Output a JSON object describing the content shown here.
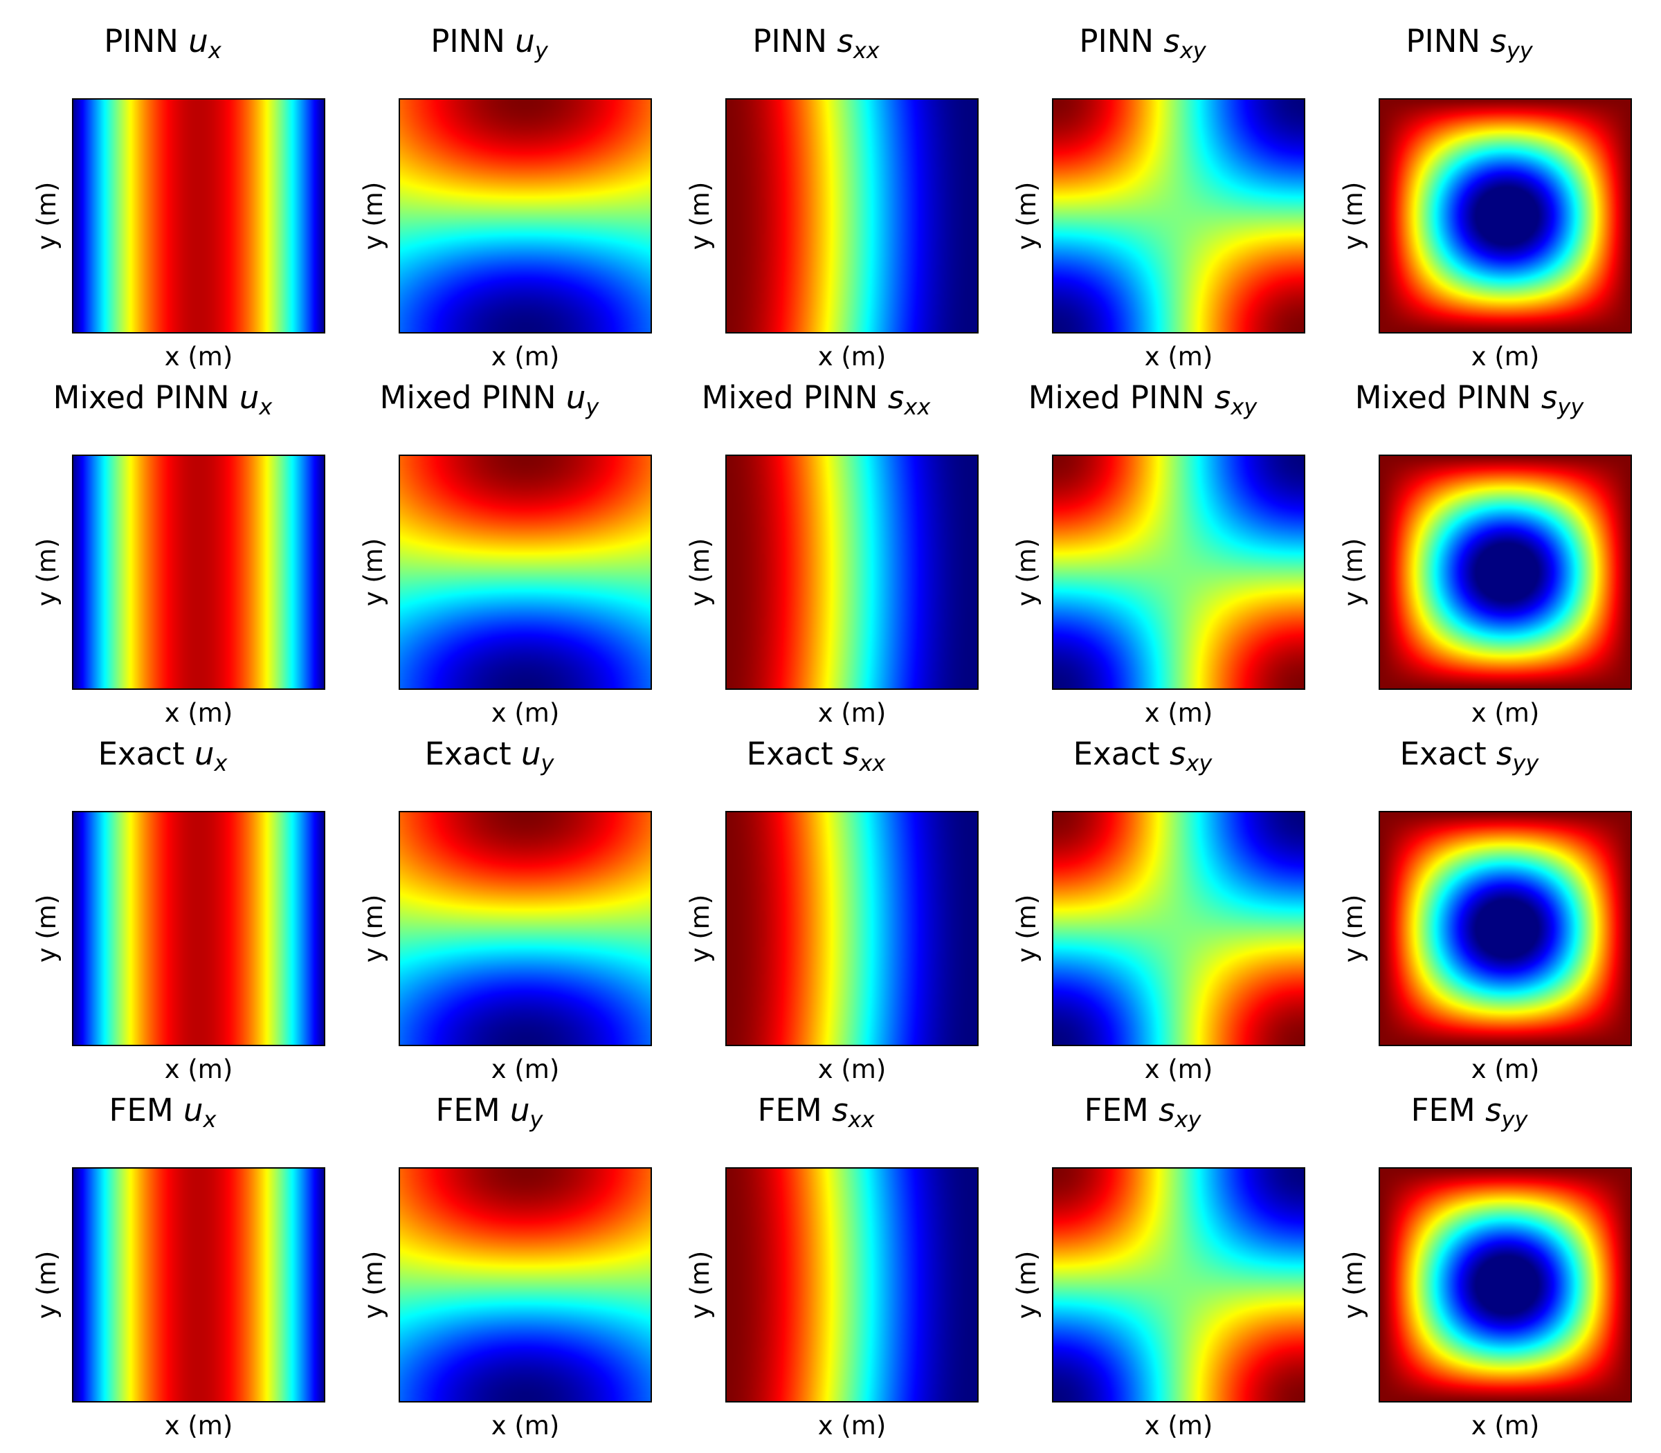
{
  "chart_data": {
    "type": "heatmap",
    "colormap": "jet",
    "grid": false,
    "layout": {
      "rows": 4,
      "cols": 5
    },
    "row_methods": [
      "PINN",
      "Mixed PINN",
      "Exact",
      "FEM"
    ],
    "fields": [
      {
        "key": "ux",
        "base": "u",
        "sub": "x"
      },
      {
        "key": "uy",
        "base": "u",
        "sub": "y"
      },
      {
        "key": "sxx",
        "base": "s",
        "sub": "xx"
      },
      {
        "key": "sxy",
        "base": "s",
        "sub": "xy"
      },
      {
        "key": "syy",
        "base": "s",
        "sub": "yy"
      }
    ],
    "xlabel": "x (m)",
    "ylabel": "y (m)",
    "panels": [
      {
        "title": "PINN",
        "field": "ux",
        "xlabel": "x (m)",
        "ylabel": "y (m)"
      },
      {
        "title": "PINN",
        "field": "uy",
        "xlabel": "x (m)",
        "ylabel": "y (m)"
      },
      {
        "title": "PINN",
        "field": "sxx",
        "xlabel": "x (m)",
        "ylabel": "y (m)"
      },
      {
        "title": "PINN",
        "field": "sxy",
        "xlabel": "x (m)",
        "ylabel": "y (m)"
      },
      {
        "title": "PINN",
        "field": "syy",
        "xlabel": "x (m)",
        "ylabel": "y (m)"
      },
      {
        "title": "Mixed PINN",
        "field": "ux",
        "xlabel": "x (m)",
        "ylabel": "y (m)"
      },
      {
        "title": "Mixed PINN",
        "field": "uy",
        "xlabel": "x (m)",
        "ylabel": "y (m)"
      },
      {
        "title": "Mixed PINN",
        "field": "sxx",
        "xlabel": "x (m)",
        "ylabel": "y (m)"
      },
      {
        "title": "Mixed PINN",
        "field": "sxy",
        "xlabel": "x (m)",
        "ylabel": "y (m)"
      },
      {
        "title": "Mixed PINN",
        "field": "syy",
        "xlabel": "x (m)",
        "ylabel": "y (m)"
      },
      {
        "title": "Exact",
        "field": "ux",
        "xlabel": "x (m)",
        "ylabel": "y (m)"
      },
      {
        "title": "Exact",
        "field": "uy",
        "xlabel": "x (m)",
        "ylabel": "y (m)"
      },
      {
        "title": "Exact",
        "field": "sxx",
        "xlabel": "x (m)",
        "ylabel": "y (m)"
      },
      {
        "title": "Exact",
        "field": "sxy",
        "xlabel": "x (m)",
        "ylabel": "y (m)"
      },
      {
        "title": "Exact",
        "field": "syy",
        "xlabel": "x (m)",
        "ylabel": "y (m)"
      },
      {
        "title": "FEM",
        "field": "ux",
        "xlabel": "x (m)",
        "ylabel": "y (m)"
      },
      {
        "title": "FEM",
        "field": "uy",
        "xlabel": "x (m)",
        "ylabel": "y (m)"
      },
      {
        "title": "FEM",
        "field": "sxx",
        "xlabel": "x (m)",
        "ylabel": "y (m)"
      },
      {
        "title": "FEM",
        "field": "sxy",
        "xlabel": "x (m)",
        "ylabel": "y (m)"
      },
      {
        "title": "FEM",
        "field": "syy",
        "xlabel": "x (m)",
        "ylabel": "y (m)"
      }
    ]
  }
}
